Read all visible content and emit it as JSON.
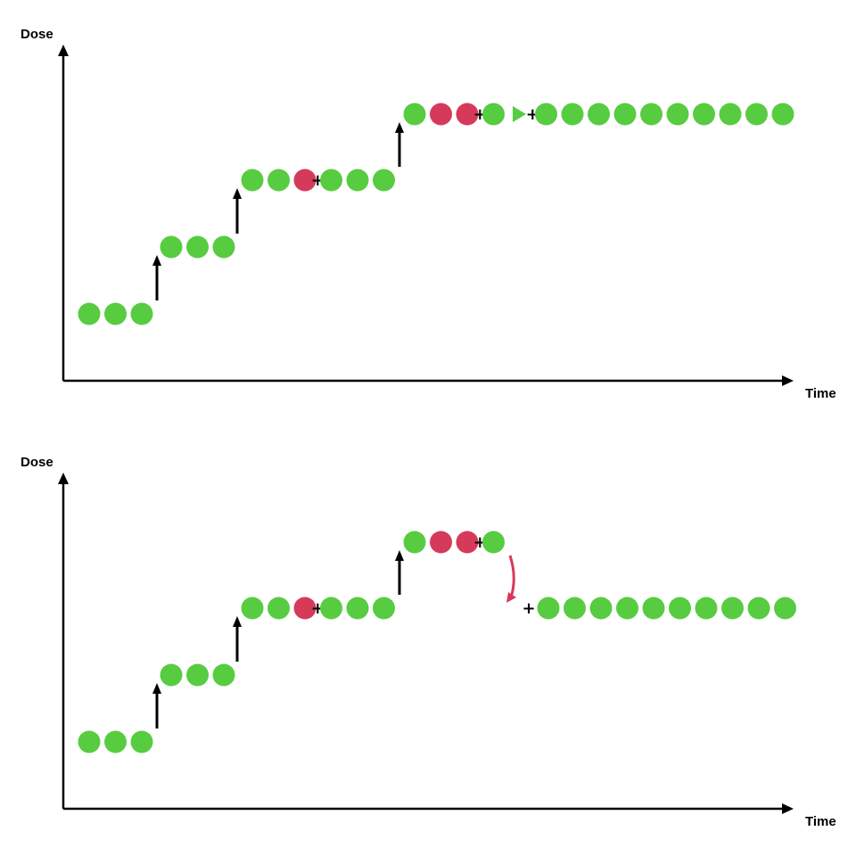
{
  "colors": {
    "tolerated": "#57cc41",
    "dlt": "#d63a5a",
    "axis": "#000000"
  },
  "panels": [
    {
      "id": "top",
      "y_axis_label": "Dose",
      "x_axis_label": "Time",
      "cohorts": [
        {
          "dose_level": 1,
          "patients": [
            "ok",
            "ok",
            "ok"
          ]
        },
        {
          "dose_level": 2,
          "patients": [
            "ok",
            "ok",
            "ok"
          ]
        },
        {
          "dose_level": 3,
          "patients": [
            "ok",
            "ok",
            "dlt",
            "+",
            "ok",
            "ok",
            "ok"
          ]
        },
        {
          "dose_level": 4,
          "patients": [
            "ok",
            "dlt",
            "dlt",
            "+",
            "ok",
            "play",
            "+",
            "ok",
            "ok",
            "ok",
            "ok",
            "ok",
            "ok",
            "ok",
            "ok",
            "ok",
            "ok"
          ]
        }
      ],
      "transitions": [
        {
          "type": "escalate",
          "from_level": 1,
          "to_level": 2
        },
        {
          "type": "escalate",
          "from_level": 2,
          "to_level": 3
        },
        {
          "type": "escalate",
          "from_level": 3,
          "to_level": 4
        }
      ]
    },
    {
      "id": "bottom",
      "y_axis_label": "Dose",
      "x_axis_label": "Time",
      "cohorts": [
        {
          "dose_level": 1,
          "patients": [
            "ok",
            "ok",
            "ok"
          ]
        },
        {
          "dose_level": 2,
          "patients": [
            "ok",
            "ok",
            "ok"
          ]
        },
        {
          "dose_level": 3,
          "patients": [
            "ok",
            "ok",
            "dlt",
            "+",
            "ok",
            "ok",
            "ok"
          ]
        },
        {
          "dose_level": 4,
          "patients": [
            "ok",
            "dlt",
            "dlt",
            "+",
            "ok"
          ]
        },
        {
          "dose_level": 3,
          "patients": [
            "+",
            "ok",
            "ok",
            "ok",
            "ok",
            "ok",
            "ok",
            "ok",
            "ok",
            "ok",
            "ok"
          ]
        }
      ],
      "transitions": [
        {
          "type": "escalate",
          "from_level": 1,
          "to_level": 2
        },
        {
          "type": "escalate",
          "from_level": 2,
          "to_level": 3
        },
        {
          "type": "escalate",
          "from_level": 3,
          "to_level": 4
        },
        {
          "type": "de-escalate",
          "from_level": 4,
          "to_level": 3
        }
      ]
    }
  ]
}
